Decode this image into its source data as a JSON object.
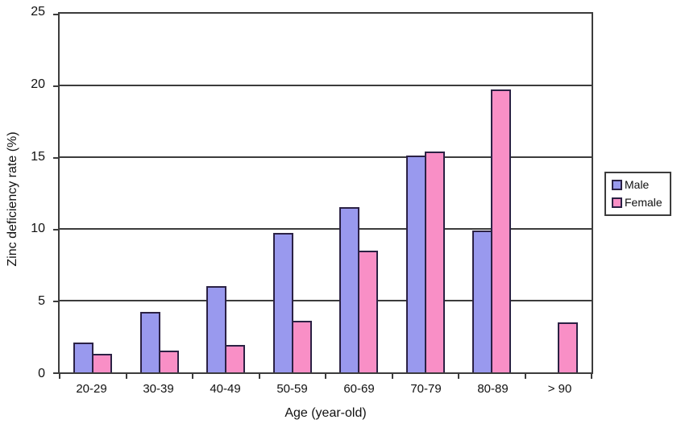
{
  "chart_data": {
    "type": "bar",
    "title": "",
    "xlabel": "Age (year-old)",
    "ylabel": "Zinc deficiency rate (%)",
    "categories": [
      "20-29",
      "30-39",
      "40-49",
      "50-59",
      "60-69",
      "70-79",
      "80-89",
      "> 90"
    ],
    "series": [
      {
        "name": "Male",
        "color": "#9999EE",
        "values": [
          2.1,
          4.2,
          6.0,
          9.7,
          11.5,
          15.1,
          9.9,
          0
        ]
      },
      {
        "name": "Female",
        "color": "#F98FC6",
        "values": [
          1.3,
          1.5,
          1.9,
          3.6,
          8.5,
          15.4,
          19.7,
          3.5
        ]
      }
    ],
    "ylim": [
      0,
      25
    ],
    "yticks": [
      0,
      5,
      10,
      15,
      20,
      25
    ],
    "grid": "horizontal",
    "legend_position": "right",
    "bar_border_color": "#2B2144",
    "axis_color": "#3C3C3C",
    "plot_background": "#FFFFFF"
  }
}
